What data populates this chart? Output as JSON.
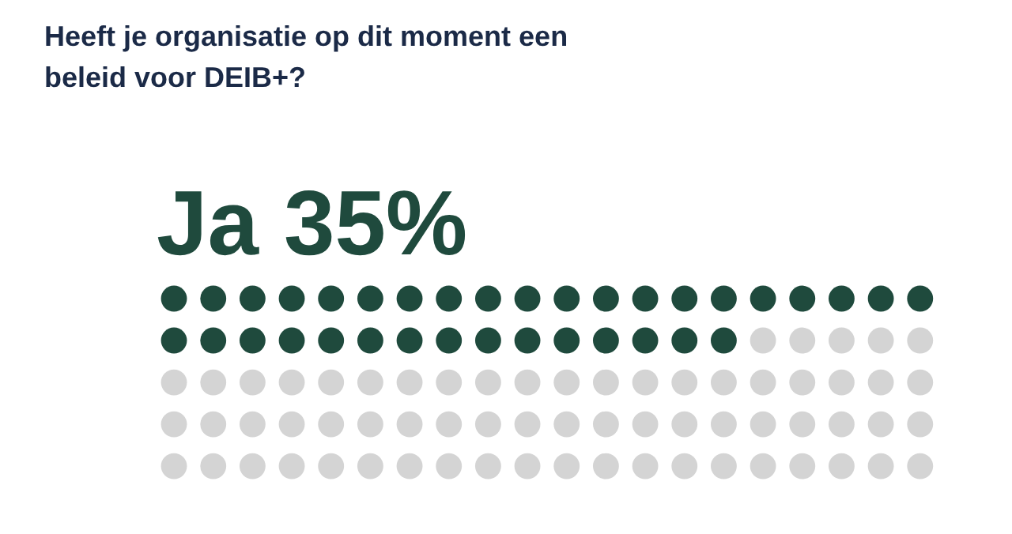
{
  "chart_data": {
    "type": "other",
    "title": "Heeft je organisatie op dit moment een beleid voor DEIB+?",
    "categories": [
      "Ja"
    ],
    "values": [
      35
    ],
    "value_labels": [
      "35%"
    ],
    "colors": [
      "#1f4a3d"
    ]
  }
}
